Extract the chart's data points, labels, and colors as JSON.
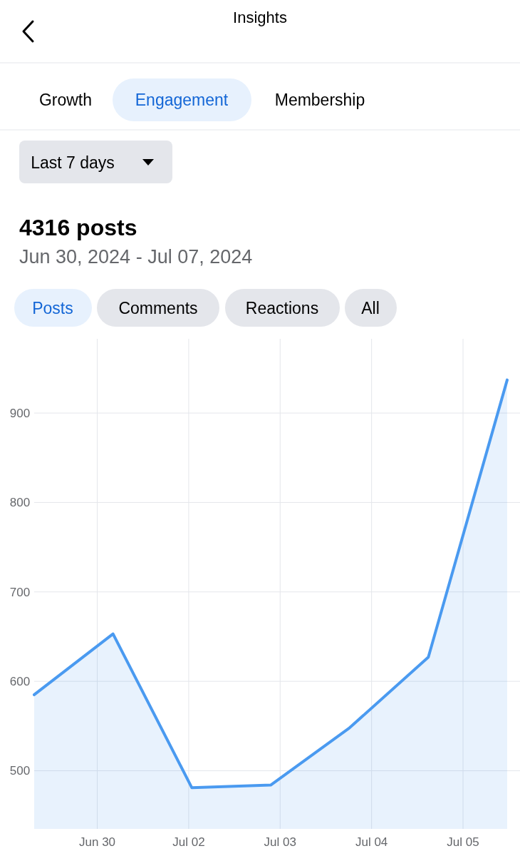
{
  "chart_data": {
    "type": "area",
    "title": "4316 posts",
    "subtitle": "Jun 30, 2024 - Jul 07, 2024",
    "annotations": [
      "Insights",
      "Growth",
      "Engagement",
      "Membership",
      "Last 7 days",
      "Posts",
      "Comments",
      "Reactions",
      "All",
      "Jun 30",
      "Jul 02",
      "Jul 03",
      "Jul 04",
      "Jul 05"
    ],
    "categories": [
      null,
      null,
      null,
      null,
      null,
      null,
      null
    ],
    "series": [
      {
        "color": "#4a9af0",
        "values": [
          585,
          653,
          481,
          484,
          548,
          627,
          937
        ]
      }
    ],
    "ylim": [
      435,
      983
    ],
    "yticks": [
      500,
      600,
      700,
      800,
      900
    ],
    "grid": true
  }
}
